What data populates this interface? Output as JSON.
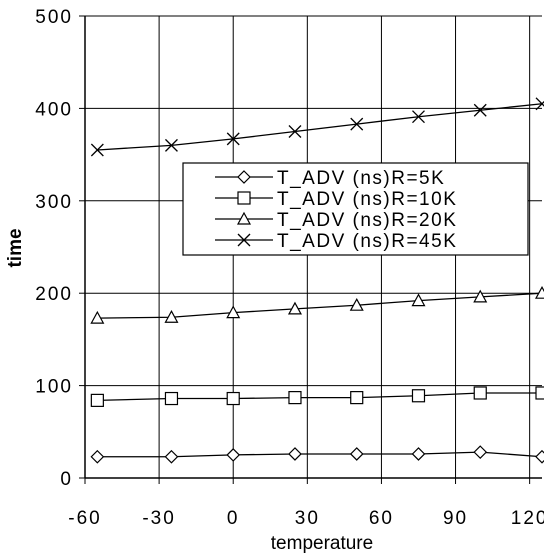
{
  "chart_data": {
    "type": "line",
    "title": "",
    "xlabel": "temperature",
    "ylabel": "time",
    "xlim": [
      -60,
      125
    ],
    "ylim": [
      0,
      500
    ],
    "x_ticks": [
      -60,
      -30,
      0,
      30,
      60,
      90,
      120
    ],
    "y_ticks": [
      0,
      100,
      200,
      300,
      400,
      500
    ],
    "x_tick_labels": [
      "-60",
      "-30",
      "0",
      "30",
      "60",
      "90",
      "120"
    ],
    "y_tick_labels": [
      "0",
      "100",
      "200",
      "300",
      "400",
      "500"
    ],
    "grid": "vertical and horizontal at major ticks",
    "legend_position": "center-right",
    "x": [
      -55,
      -25,
      0,
      25,
      50,
      75,
      100,
      125
    ],
    "series": [
      {
        "name": "T_ADV (ns)R=5K",
        "marker": "diamond",
        "values": [
          23,
          23,
          25,
          26,
          26,
          26,
          28,
          23
        ]
      },
      {
        "name": "T_ADV (ns)R=10K",
        "marker": "square",
        "values": [
          84,
          86,
          86,
          87,
          87,
          89,
          92,
          92
        ]
      },
      {
        "name": "T_ADV (ns)R=20K",
        "marker": "triangle",
        "values": [
          173,
          174,
          179,
          183,
          187,
          192,
          196,
          200
        ]
      },
      {
        "name": "T_ADV (ns)R=45K",
        "marker": "x",
        "values": [
          355,
          360,
          367,
          375,
          383,
          391,
          398,
          405
        ]
      }
    ]
  }
}
